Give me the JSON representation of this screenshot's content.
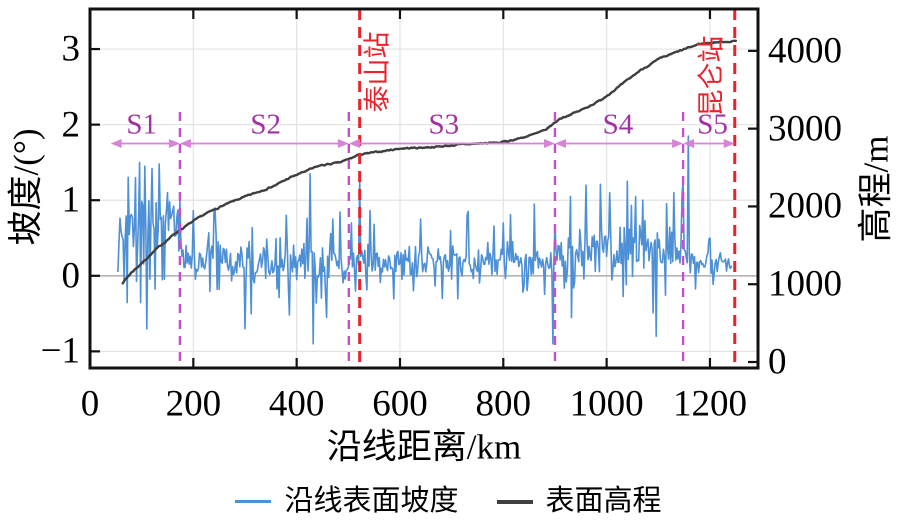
{
  "chart_data": {
    "type": "line",
    "title": "",
    "xlabel": "沿线距离/km",
    "ylabel_left": "坡度/(°)",
    "ylabel_right": "高程/m",
    "xlim": [
      0,
      1293
    ],
    "ylim_left": [
      -1.22,
      3.53
    ],
    "ylim_right": [
      -77,
      4538
    ],
    "x_ticks": [
      0,
      200,
      400,
      600,
      800,
      1000,
      1200
    ],
    "y_ticks_left": [
      -1,
      0,
      1,
      2,
      3
    ],
    "y_ticks_right": [
      0,
      1000,
      2000,
      3000,
      4000
    ],
    "grid": true,
    "legend_position": "bottom",
    "series": [
      {
        "name": "沿线表面坡度",
        "axis": "left",
        "color": "#4e90d5",
        "line_style": "noisy_line",
        "x_start": 54,
        "x_end": 1242,
        "x_step": 2,
        "seed": 20240813,
        "clamp": [
          -0.95,
          1.85
        ],
        "segments": [
          {
            "label": "S1",
            "from": 54,
            "to": 174,
            "mean": 0.65,
            "sd": 0.34
          },
          {
            "label": "S2",
            "from": 174,
            "to": 501,
            "mean": 0.2,
            "sd": 0.24
          },
          {
            "label": "S3",
            "from": 501,
            "to": 900,
            "mean": 0.19,
            "sd": 0.18
          },
          {
            "label": "S4",
            "from": 900,
            "to": 1148,
            "mean": 0.3,
            "sd": 0.3
          },
          {
            "label": "S5",
            "from": 1148,
            "to": 1242,
            "mean": 0.16,
            "sd": 0.12
          }
        ],
        "key_points": [
          [
            54,
            0.05
          ],
          [
            60,
            0.6
          ],
          [
            88,
            1.3
          ],
          [
            95,
            1.5
          ],
          [
            105,
            1.45
          ],
          [
            110,
            -0.7
          ],
          [
            120,
            1.42
          ],
          [
            134,
            1.48
          ],
          [
            150,
            1.1
          ],
          [
            240,
            0.85
          ],
          [
            300,
            -0.7
          ],
          [
            380,
            0.8
          ],
          [
            426,
            1.35
          ],
          [
            432,
            -0.9
          ],
          [
            470,
            0.75
          ],
          [
            505,
            0.7
          ],
          [
            522,
            1.28
          ],
          [
            640,
            0.75
          ],
          [
            730,
            0.8
          ],
          [
            800,
            0.7
          ],
          [
            860,
            0.95
          ],
          [
            895,
            -0.9
          ],
          [
            930,
            1.05
          ],
          [
            960,
            1.2
          ],
          [
            1005,
            1.1
          ],
          [
            1040,
            1.25
          ],
          [
            1070,
            1.0
          ],
          [
            1095,
            -0.8
          ],
          [
            1130,
            1.1
          ],
          [
            1157,
            1.85
          ],
          [
            1200,
            0.5
          ],
          [
            1240,
            0.1
          ]
        ]
      },
      {
        "name": "表面高程",
        "axis": "right",
        "color": "#3f3f3f",
        "line_style": "line",
        "points": [
          [
            62,
            1010
          ],
          [
            80,
            1150
          ],
          [
            100,
            1270
          ],
          [
            130,
            1460
          ],
          [
            164,
            1650
          ],
          [
            193,
            1780
          ],
          [
            222,
            1900
          ],
          [
            257,
            2010
          ],
          [
            290,
            2100
          ],
          [
            323,
            2180
          ],
          [
            358,
            2270
          ],
          [
            387,
            2370
          ],
          [
            416,
            2450
          ],
          [
            445,
            2525
          ],
          [
            484,
            2565
          ],
          [
            522,
            2665
          ],
          [
            561,
            2705
          ],
          [
            600,
            2745
          ],
          [
            639,
            2755
          ],
          [
            677,
            2770
          ],
          [
            716,
            2795
          ],
          [
            755,
            2810
          ],
          [
            793,
            2820
          ],
          [
            822,
            2860
          ],
          [
            851,
            2910
          ],
          [
            880,
            2975
          ],
          [
            910,
            3130
          ],
          [
            948,
            3230
          ],
          [
            987,
            3360
          ],
          [
            1026,
            3550
          ],
          [
            1064,
            3745
          ],
          [
            1103,
            3900
          ],
          [
            1142,
            4000
          ],
          [
            1180,
            4090
          ],
          [
            1219,
            4115
          ],
          [
            1252,
            4125
          ]
        ]
      }
    ],
    "region_dividers": {
      "x_values": [
        174,
        501,
        900,
        1148
      ]
    },
    "segment_annotations": {
      "arrow_y": 1.75,
      "label_y": 2.0,
      "items": [
        {
          "label": "S1",
          "from": 40,
          "to": 174,
          "label_x": 100
        },
        {
          "label": "S2",
          "from": 174,
          "to": 501,
          "label_x": 340
        },
        {
          "label": "S3",
          "from": 501,
          "to": 900,
          "label_x": 685
        },
        {
          "label": "S4",
          "from": 900,
          "to": 1148,
          "label_x": 1022
        },
        {
          "label": "S5",
          "from": 1148,
          "to": 1248,
          "label_x": 1205
        }
      ]
    },
    "stations": [
      {
        "label": "泰山站",
        "x": 522,
        "label_side": "right"
      },
      {
        "label": "昆仑站",
        "x": 1248,
        "label_side": "left"
      }
    ],
    "legend": [
      {
        "label": "沿线表面坡度",
        "color": "#4e90d5",
        "swatch_thickness": 3
      },
      {
        "label": "表面高程",
        "color": "#3f3f3f",
        "swatch_thickness": 4
      }
    ]
  },
  "colors": {
    "slope_line": "#4e90d5",
    "elevation_line": "#3f3f3f",
    "station_line": "#e8232b",
    "station_label": "#e8232b",
    "divider_line": "#c94fc9",
    "segment_label": "#a232a2",
    "segment_arrow": "#d783d7",
    "grid": "#e3e3e3",
    "zero_line": "#b5b5b5",
    "axis": "#111111",
    "text": "#000000",
    "background": "#ffffff"
  }
}
